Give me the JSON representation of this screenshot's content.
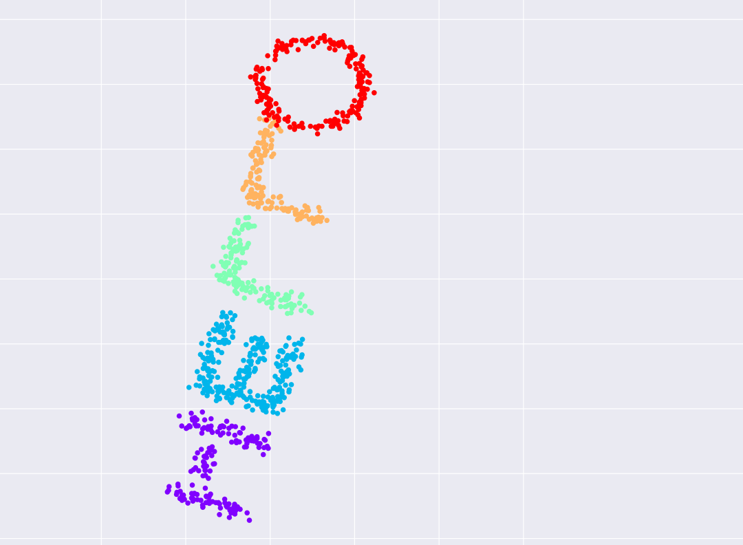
{
  "chart_data": {
    "type": "scatter",
    "title": "",
    "xlabel": "",
    "ylabel": "",
    "grid": true,
    "legend": "none",
    "background": "#eaeaf2",
    "grid_color": "#ffffff",
    "xlim": [
      -1.2,
      7.6
    ],
    "ylim": [
      -0.1,
      8.3
    ],
    "xgrid": [
      0,
      1,
      2,
      3,
      4,
      5
    ],
    "ygrid": [
      0,
      1,
      2,
      3,
      4,
      5,
      6,
      7,
      8
    ],
    "series": [
      {
        "letter": "H",
        "color": "#8000ff",
        "strokes": [
          [
            [
              0.85,
              0.72
            ],
            [
              1.72,
              0.38
            ]
          ],
          [
            [
              1.02,
              1.82
            ],
            [
              1.95,
              1.45
            ]
          ],
          [
            [
              1.15,
              0.92
            ],
            [
              1.32,
              1.36
            ]
          ]
        ]
      },
      {
        "letter": "E",
        "color": "#00b5eb",
        "strokes": [
          [
            [
              1.18,
              2.35
            ],
            [
              1.52,
              3.48
            ]
          ],
          [
            [
              1.18,
              2.35
            ],
            [
              2.08,
              2.0
            ]
          ],
          [
            [
              1.58,
              2.18
            ],
            [
              1.88,
              3.08
            ]
          ],
          [
            [
              2.05,
              2.05
            ],
            [
              2.28,
              3.0
            ]
          ]
        ]
      },
      {
        "letter": "L",
        "color": "#80ffb4",
        "strokes": [
          [
            [
              1.72,
              4.95
            ],
            [
              1.48,
              4.0
            ]
          ],
          [
            [
              1.48,
              4.0
            ],
            [
              2.4,
              3.55
            ]
          ]
        ]
      },
      {
        "letter": "L",
        "color": "#ffb360",
        "strokes": [
          [
            [
              2.0,
              6.4
            ],
            [
              1.75,
              5.25
            ]
          ],
          [
            [
              1.75,
              5.25
            ],
            [
              2.62,
              4.95
            ]
          ]
        ]
      },
      {
        "letter": "O",
        "color": "#ff0000",
        "ring": {
          "cx": 2.5,
          "cy": 7.0,
          "rx": 0.62,
          "ry": 0.68
        }
      }
    ]
  }
}
